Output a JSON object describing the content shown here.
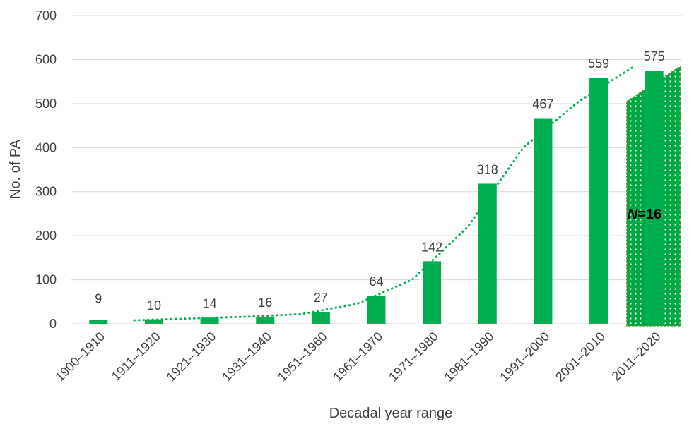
{
  "chart_data": {
    "type": "bar",
    "categories": [
      "1900–1910",
      "1911–1920",
      "1921–1930",
      "1931–1940",
      "1951–1960",
      "1961–1970",
      "1971–1980",
      "1981–1990",
      "1991–2000",
      "2001–2010",
      "2011–2020"
    ],
    "values": [
      9,
      10,
      14,
      16,
      27,
      64,
      142,
      318,
      467,
      559,
      575
    ],
    "data_labels": [
      "9",
      "10",
      "14",
      "16",
      "27",
      "64",
      "142",
      "318",
      "467",
      "559",
      "575"
    ],
    "xlabel": "Decadal year range",
    "ylabel": "No. of PA",
    "ylim": [
      0,
      700
    ],
    "yticks": [
      0,
      100,
      200,
      300,
      400,
      500,
      600,
      700
    ],
    "ytick_labels": [
      "0",
      "100",
      "200",
      "300",
      "400",
      "500",
      "600",
      "700"
    ],
    "grid": true,
    "trendline": {
      "style": "dotted",
      "from_category": "1911–1920",
      "values_approx": [
        8,
        12,
        16,
        22,
        45,
        100,
        220,
        400,
        505,
        585
      ]
    },
    "annotation": {
      "label_italic": "N",
      "label_rest": "=16",
      "category": "2011–2020",
      "shaded_area_top": [
        505,
        585
      ]
    },
    "colors": {
      "bar": "#00b050",
      "trendline": "#00b050",
      "shade": "#00a843",
      "shade_dots": "#ffffff",
      "grid": "#d9d9d9",
      "text": "#404040",
      "label_text": "#000000"
    }
  }
}
